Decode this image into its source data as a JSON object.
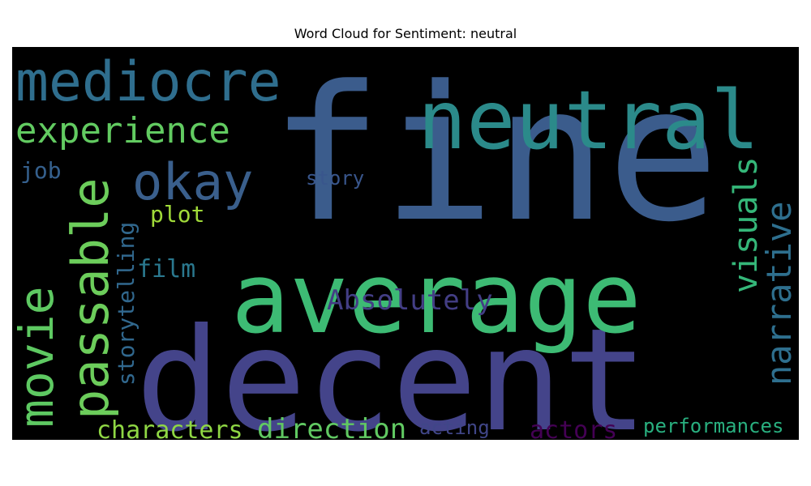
{
  "chart_data": {
    "type": "wordcloud",
    "title": "Word Cloud for Sentiment: neutral",
    "background": "#000000",
    "words": [
      {
        "text": "fine",
        "size": 230,
        "color": "#3b5c8c"
      },
      {
        "text": "decent",
        "size": 175,
        "color": "#44448a"
      },
      {
        "text": "average",
        "size": 120,
        "color": "#3dbb74"
      },
      {
        "text": "neutral",
        "size": 100,
        "color": "#2b8a8a"
      },
      {
        "text": "mediocre",
        "size": 68,
        "color": "#2f6e8e"
      },
      {
        "text": "passable",
        "size": 62,
        "color": "#6ccd5b"
      },
      {
        "text": "okay",
        "size": 62,
        "color": "#3a5f8c"
      },
      {
        "text": "movie",
        "size": 58,
        "color": "#5ec962"
      },
      {
        "text": "experience",
        "size": 44,
        "color": "#62cb61"
      },
      {
        "text": "narrative",
        "size": 42,
        "color": "#2e6f8e"
      },
      {
        "text": "visuals",
        "size": 40,
        "color": "#35b779"
      },
      {
        "text": "direction",
        "size": 34,
        "color": "#61c962"
      },
      {
        "text": "Absolutely",
        "size": 34,
        "color": "#433e85"
      },
      {
        "text": "characters",
        "size": 30,
        "color": "#8fd744"
      },
      {
        "text": "actors",
        "size": 30,
        "color": "#440154"
      },
      {
        "text": "film",
        "size": 30,
        "color": "#2a788e"
      },
      {
        "text": "storytelling",
        "size": 28,
        "color": "#31688e"
      },
      {
        "text": "plot",
        "size": 28,
        "color": "#a0da39"
      },
      {
        "text": "job",
        "size": 28,
        "color": "#35608d"
      },
      {
        "text": "performances",
        "size": 24,
        "color": "#29af7f"
      },
      {
        "text": "acting",
        "size": 24,
        "color": "#404688"
      },
      {
        "text": "story",
        "size": 24,
        "color": "#39568c"
      }
    ]
  }
}
